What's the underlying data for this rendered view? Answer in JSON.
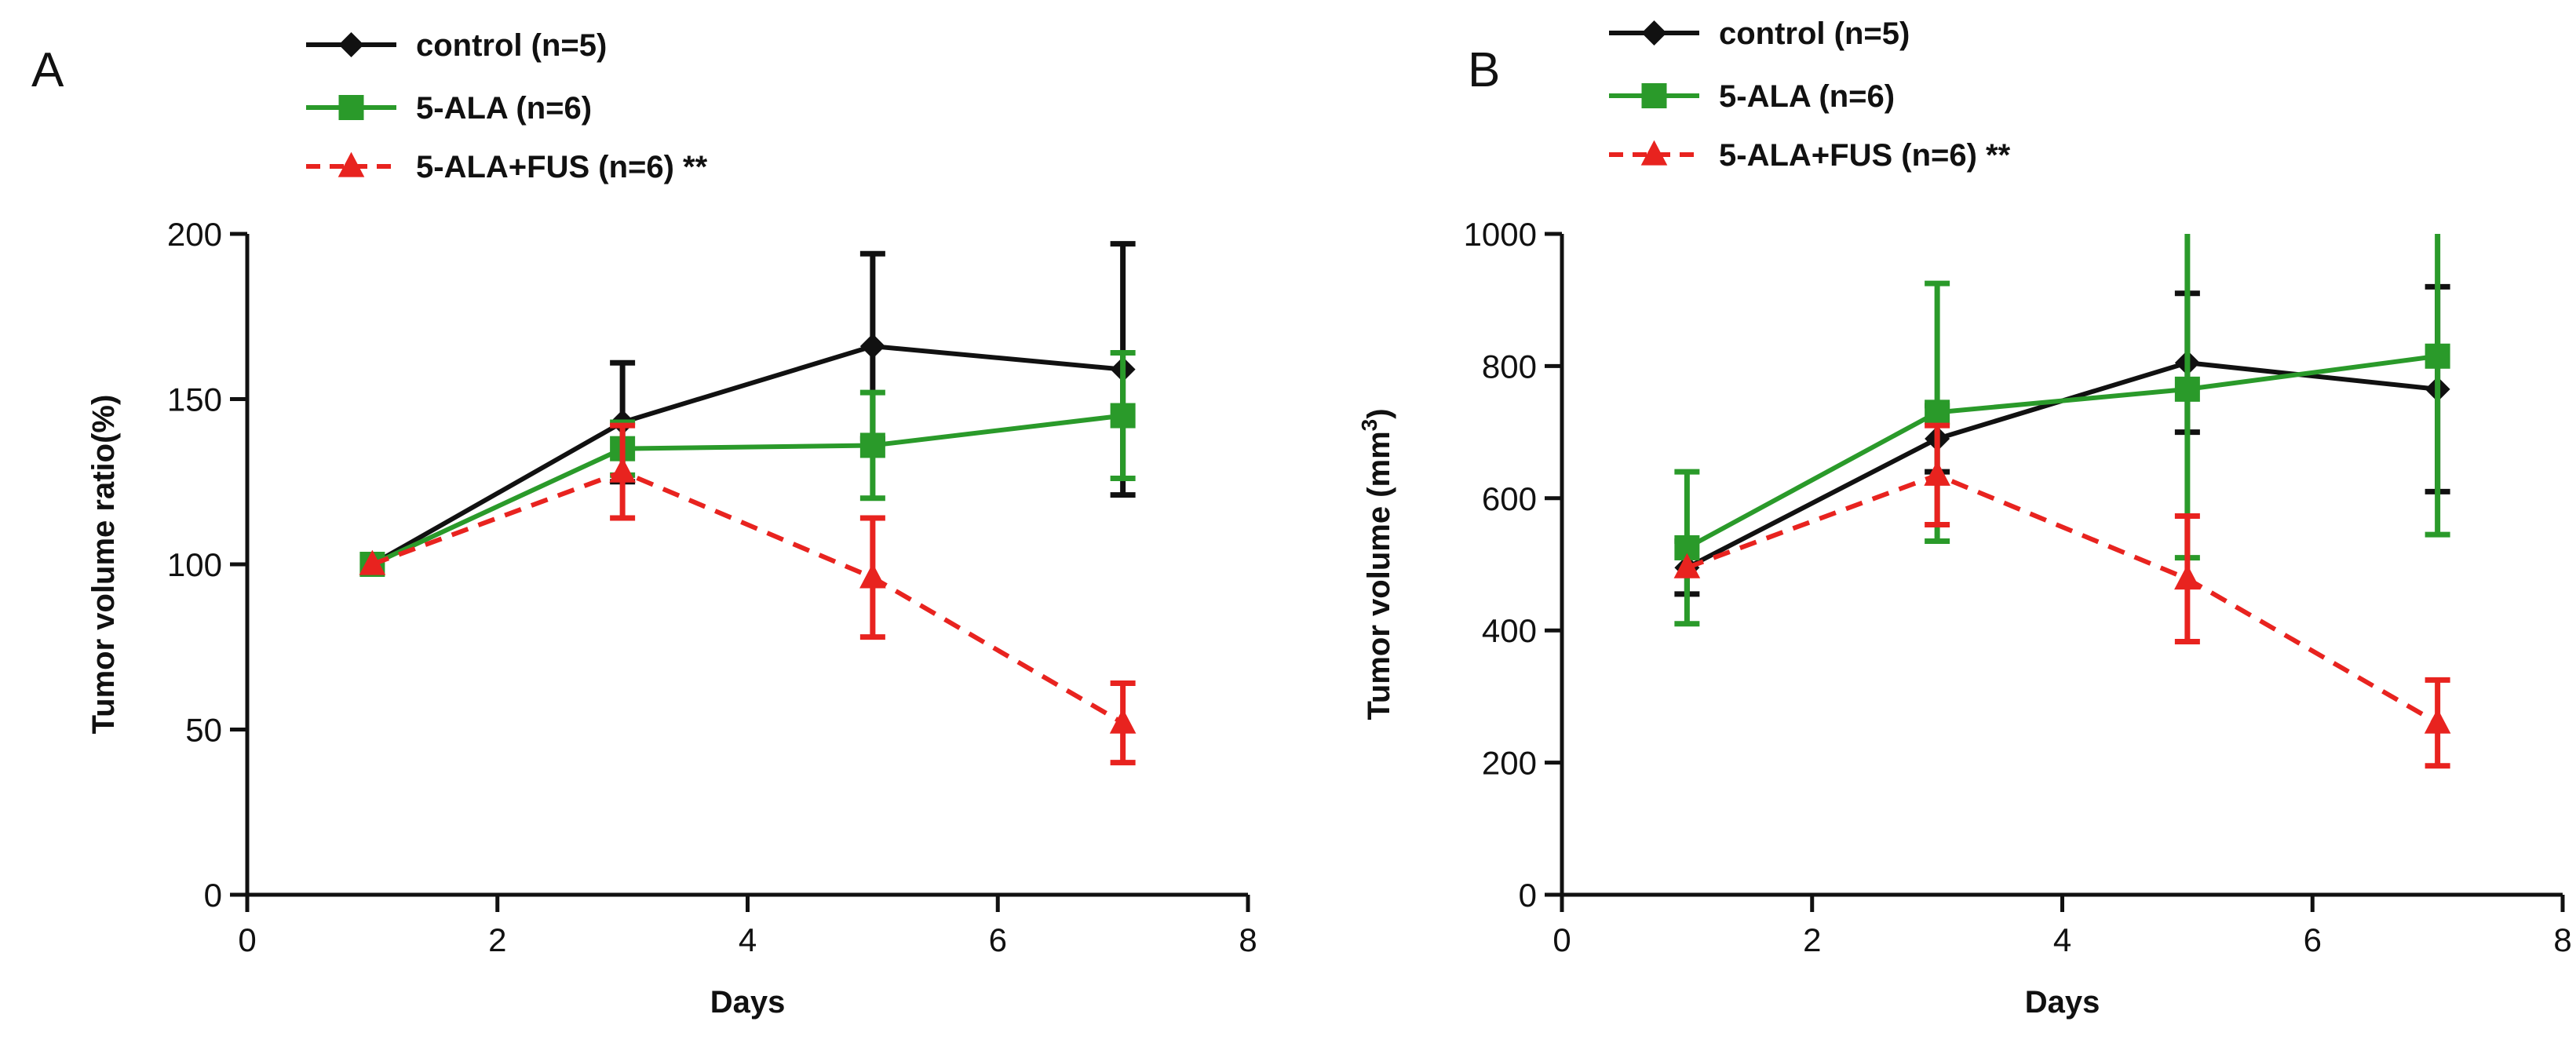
{
  "chart_data": [
    {
      "type": "line",
      "panel_label": "A",
      "title": "",
      "xlabel": "Days",
      "ylabel": "Tumor  volume ratio(%)",
      "ylabel_sup": "",
      "ylabel_end": "",
      "xlim": [
        0,
        8
      ],
      "ylim": [
        0,
        200
      ],
      "xticks": [
        0,
        2,
        4,
        6,
        8
      ],
      "yticks": [
        0,
        50,
        100,
        150,
        200
      ],
      "grid": false,
      "legend_position": "top-center",
      "series": [
        {
          "name": "control",
          "legend_label": "control (n=5)",
          "color": "#111111",
          "marker": "diamond",
          "dashed": false,
          "x": [
            1,
            3,
            5,
            7
          ],
          "values": [
            100,
            143,
            166,
            159
          ],
          "error": [
            0,
            18,
            28,
            38
          ]
        },
        {
          "name": "5-ALA",
          "legend_label": "5-ALA  (n=6)",
          "color": "#2a9a2a",
          "marker": "square",
          "dashed": false,
          "x": [
            1,
            3,
            5,
            7
          ],
          "values": [
            100,
            135,
            136,
            145
          ],
          "error": [
            0,
            8,
            16,
            19
          ]
        },
        {
          "name": "5-ALA+FUS",
          "legend_label": "5-ALA+FUS  (n=6)  **",
          "color": "#e8231f",
          "marker": "triangle",
          "dashed": true,
          "x": [
            1,
            3,
            5,
            7
          ],
          "values": [
            100,
            128,
            96,
            52
          ],
          "error": [
            0,
            14,
            18,
            12
          ]
        }
      ]
    },
    {
      "type": "line",
      "panel_label": "B",
      "title": "",
      "xlabel": "Days",
      "ylabel": "Tumor  volume (mm",
      "ylabel_sup": "3",
      "ylabel_end": ")",
      "xlim": [
        0,
        8
      ],
      "ylim": [
        0,
        1000
      ],
      "xticks": [
        0,
        2,
        4,
        6,
        8
      ],
      "yticks": [
        0,
        200,
        400,
        600,
        800,
        1000
      ],
      "grid": false,
      "legend_position": "top-center",
      "series": [
        {
          "name": "control",
          "legend_label": "control (n=5)",
          "color": "#111111",
          "marker": "diamond",
          "dashed": false,
          "x": [
            1,
            3,
            5,
            7
          ],
          "values": [
            495,
            690,
            805,
            765
          ],
          "error": [
            40,
            50,
            105,
            155
          ]
        },
        {
          "name": "5-ALA",
          "legend_label": "5-ALA  (n=6)",
          "color": "#2a9a2a",
          "marker": "square",
          "dashed": false,
          "x": [
            1,
            3,
            5,
            7
          ],
          "values": [
            525,
            730,
            765,
            815
          ],
          "error": [
            115,
            195,
            255,
            270
          ]
        },
        {
          "name": "5-ALA+FUS",
          "legend_label": "5-ALA+FUS  (n=6)  **",
          "color": "#e8231f",
          "marker": "triangle",
          "dashed": true,
          "x": [
            1,
            3,
            5,
            7
          ],
          "values": [
            495,
            635,
            478,
            260
          ],
          "error": [
            0,
            75,
            95,
            65
          ]
        }
      ]
    }
  ]
}
